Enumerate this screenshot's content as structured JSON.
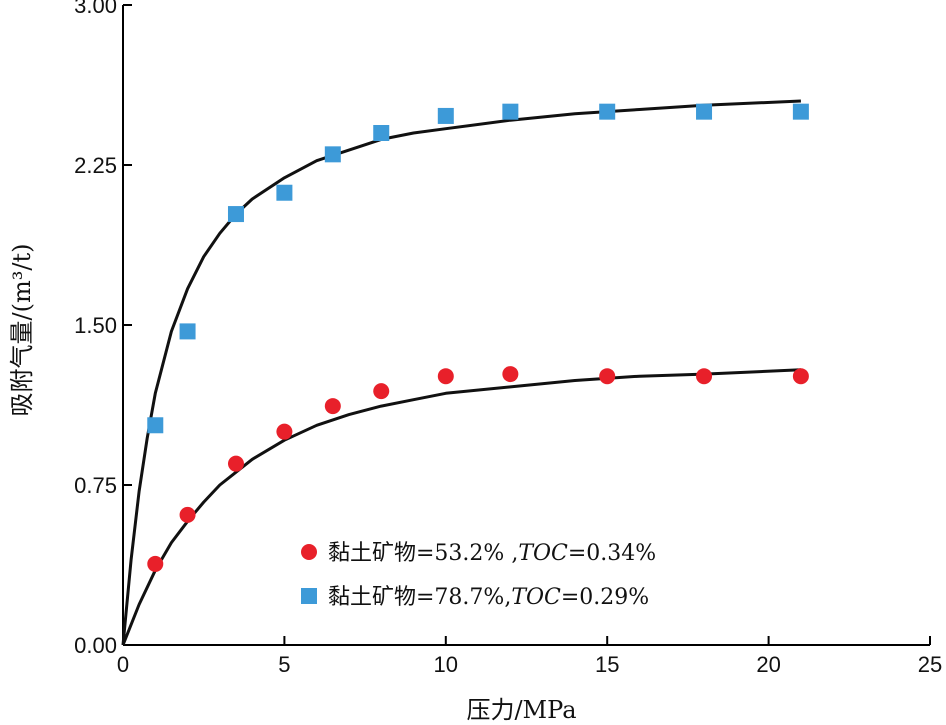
{
  "chart_data": {
    "type": "scatter",
    "xlabel": "压力/MPa",
    "ylabel": "吸附气量/(m³/t)",
    "xlim": [
      0,
      25
    ],
    "ylim": [
      0,
      3
    ],
    "x_ticks": [
      "0",
      "5",
      "10",
      "15",
      "20",
      "25"
    ],
    "y_ticks": [
      "0.00",
      "0.75",
      "1.50",
      "2.25",
      "3.00"
    ],
    "grid": false,
    "legend_position": "bottom-center",
    "series": [
      {
        "name": "黏土矿物=53.2% ,TOC=0.34%",
        "label_parts": [
          "黏土矿物=53.2% ,",
          "TOC",
          "=0.34%"
        ],
        "marker": "circle",
        "color": "#e8202a",
        "x": [
          1,
          2,
          3.5,
          5,
          6.5,
          8,
          10,
          12,
          15,
          18,
          21
        ],
        "y": [
          0.38,
          0.61,
          0.85,
          1.0,
          1.12,
          1.19,
          1.26,
          1.27,
          1.26,
          1.26,
          1.26
        ],
        "fit_curve": {
          "x": [
            0,
            0.5,
            1,
            1.5,
            2,
            2.5,
            3,
            3.5,
            4,
            5,
            6,
            7,
            8,
            9,
            10,
            12,
            14,
            16,
            18,
            21
          ],
          "y": [
            0,
            0.19,
            0.35,
            0.48,
            0.58,
            0.67,
            0.75,
            0.81,
            0.87,
            0.96,
            1.03,
            1.08,
            1.12,
            1.15,
            1.18,
            1.21,
            1.24,
            1.26,
            1.27,
            1.29
          ]
        }
      },
      {
        "name": "黏土矿物=78.7%,TOC=0.29%",
        "label_parts": [
          "黏土矿物=78.7%,",
          "TOC",
          "=0.29%"
        ],
        "marker": "square",
        "color": "#3d9ad8",
        "x": [
          1,
          2,
          3.5,
          5,
          6.5,
          8,
          10,
          12,
          15,
          18,
          21
        ],
        "y": [
          1.03,
          1.47,
          2.02,
          2.12,
          2.3,
          2.4,
          2.48,
          2.5,
          2.5,
          2.5,
          2.5
        ],
        "fit_curve": {
          "x": [
            0,
            0.25,
            0.5,
            0.75,
            1,
            1.5,
            2,
            2.5,
            3,
            3.5,
            4,
            5,
            6,
            7,
            8,
            9,
            10,
            12,
            14,
            16,
            18,
            21
          ],
          "y": [
            0,
            0.4,
            0.72,
            0.97,
            1.18,
            1.47,
            1.67,
            1.82,
            1.93,
            2.02,
            2.09,
            2.19,
            2.27,
            2.32,
            2.37,
            2.4,
            2.42,
            2.46,
            2.49,
            2.51,
            2.53,
            2.55
          ]
        }
      }
    ]
  }
}
